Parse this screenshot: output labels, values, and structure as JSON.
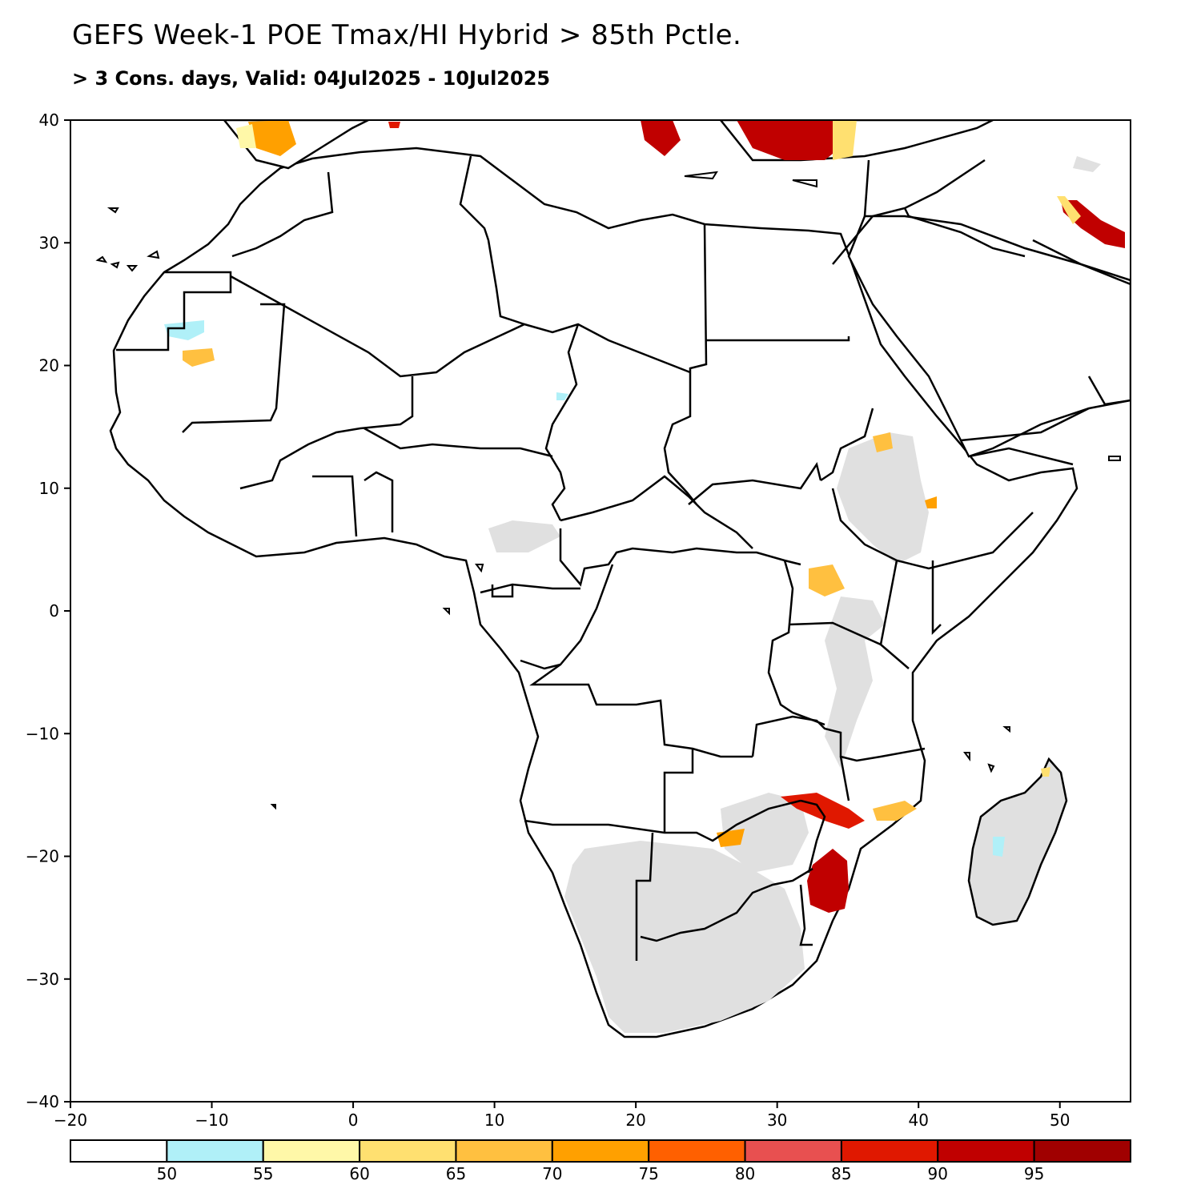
{
  "title": "GEFS Week-1 POE Tmax/HI Hybrid > 85th Pctle.",
  "subtitle": "> 3 Cons. days, Valid: 04Jul2025 - 10Jul2025",
  "axes": {
    "lon_ticks": [
      -20,
      -10,
      0,
      10,
      20,
      30,
      40,
      50
    ],
    "lat_ticks": [
      40,
      30,
      20,
      10,
      0,
      -10,
      -20,
      -30,
      -40
    ],
    "lon_range": [
      -20,
      55
    ],
    "lat_range": [
      -40,
      40
    ]
  },
  "colorbar": {
    "labels": [
      "50",
      "55",
      "60",
      "65",
      "70",
      "75",
      "80",
      "85",
      "90",
      "95"
    ],
    "colors": [
      "#ffffff",
      "#b0f0f8",
      "#fff8a8",
      "#ffe070",
      "#ffc040",
      "#ffa000",
      "#ff6000",
      "#e85050",
      "#e01800",
      "#c00000",
      "#a00000"
    ]
  },
  "colors": {
    "land_shade": "#e0e0e0",
    "border": "#000000"
  }
}
